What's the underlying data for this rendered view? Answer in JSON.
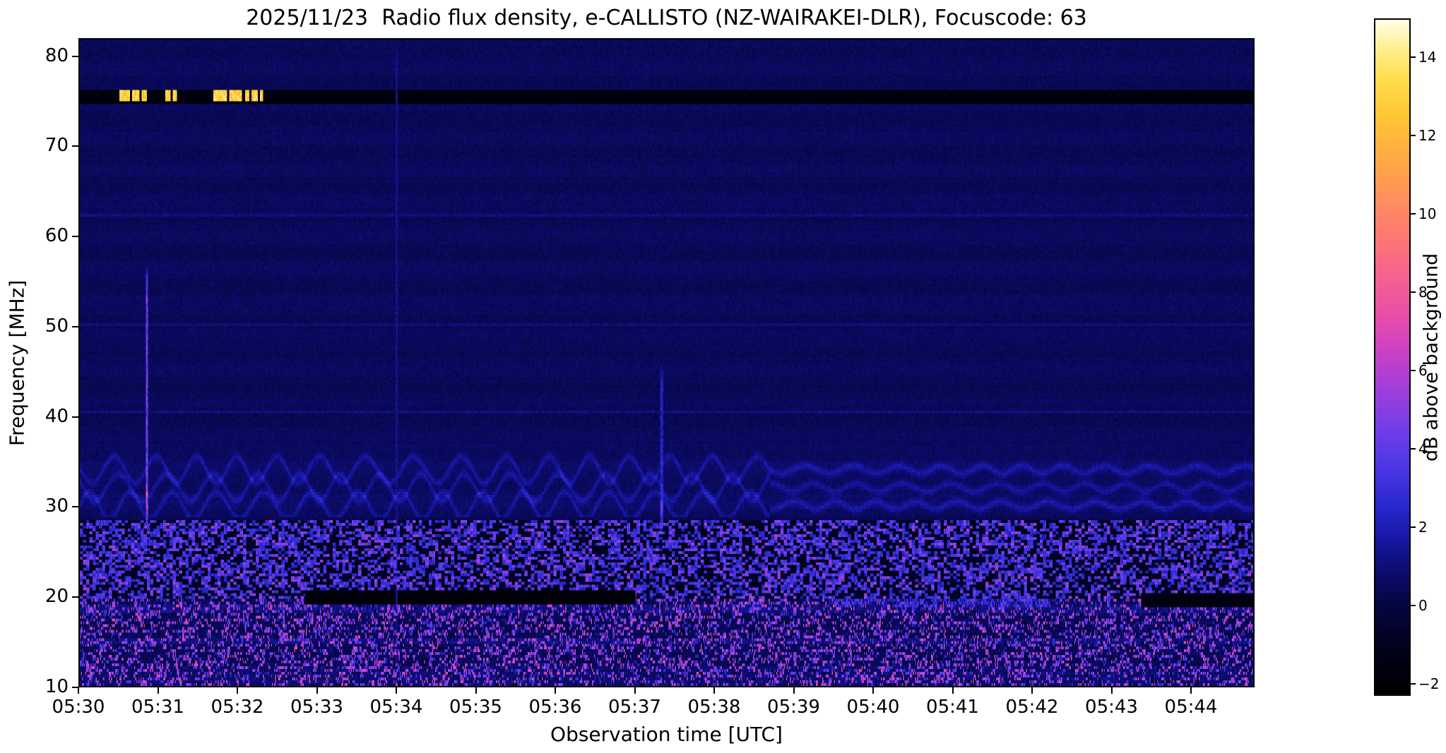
{
  "chart_data": {
    "type": "heatmap",
    "title": "2025/11/23  Radio flux density, e-CALLISTO (NZ-WAIRAKEI-DLR), Focuscode: 63",
    "x_axis": {
      "label": "Observation time [UTC]",
      "start_time": "05:30",
      "total_minutes": 14.8,
      "ticks": [
        {
          "min": 0,
          "label": "05:30"
        },
        {
          "min": 1,
          "label": "05:31"
        },
        {
          "min": 2,
          "label": "05:32"
        },
        {
          "min": 3,
          "label": "05:33"
        },
        {
          "min": 4,
          "label": "05:34"
        },
        {
          "min": 5,
          "label": "05:35"
        },
        {
          "min": 6,
          "label": "05:36"
        },
        {
          "min": 7,
          "label": "05:37"
        },
        {
          "min": 8,
          "label": "05:38"
        },
        {
          "min": 9,
          "label": "05:39"
        },
        {
          "min": 10,
          "label": "05:40"
        },
        {
          "min": 11,
          "label": "05:41"
        },
        {
          "min": 12,
          "label": "05:42"
        },
        {
          "min": 13,
          "label": "05:43"
        },
        {
          "min": 14,
          "label": "05:44"
        }
      ]
    },
    "y_axis": {
      "label": "Frequency [MHz]",
      "range": [
        10,
        82
      ],
      "ticks": [
        10,
        20,
        30,
        40,
        50,
        60,
        70,
        80
      ]
    },
    "colorbar": {
      "label": "dB above background",
      "range": [
        -2.3,
        15.0
      ],
      "ticks": [
        {
          "v": -2,
          "label": "−2"
        },
        {
          "v": 0,
          "label": "0"
        },
        {
          "v": 2,
          "label": "2"
        },
        {
          "v": 4,
          "label": "4"
        },
        {
          "v": 6,
          "label": "6"
        },
        {
          "v": 8,
          "label": "8"
        },
        {
          "v": 10,
          "label": "10"
        },
        {
          "v": 12,
          "label": "12"
        },
        {
          "v": 14,
          "label": "14"
        }
      ]
    },
    "colormap_stops": [
      [
        -2.3,
        0,
        0,
        0
      ],
      [
        -1.2,
        2,
        2,
        26
      ],
      [
        0.0,
        6,
        6,
        66
      ],
      [
        0.8,
        12,
        12,
        108
      ],
      [
        1.6,
        22,
        22,
        160
      ],
      [
        2.5,
        40,
        40,
        205
      ],
      [
        3.5,
        75,
        55,
        230
      ],
      [
        4.5,
        115,
        62,
        232
      ],
      [
        5.5,
        160,
        62,
        220
      ],
      [
        6.5,
        205,
        65,
        196
      ],
      [
        7.5,
        235,
        80,
        168
      ],
      [
        8.5,
        248,
        100,
        142
      ],
      [
        9.5,
        253,
        122,
        115
      ],
      [
        10.5,
        255,
        147,
        92
      ],
      [
        11.5,
        255,
        172,
        66
      ],
      [
        12.5,
        255,
        198,
        52
      ],
      [
        13.5,
        255,
        222,
        78
      ],
      [
        14.3,
        255,
        240,
        150
      ],
      [
        15.0,
        255,
        255,
        235
      ]
    ],
    "features": {
      "background": {
        "base_db": 0.45,
        "noise_db": 0.6
      },
      "rfi_band": {
        "freq": [
          74.8,
          76.5
        ],
        "core_freq": [
          75.0,
          76.35
        ],
        "level_db": -1.7,
        "burst_level_db": 13.0,
        "bursts_min": [
          [
            0.5,
            0.63
          ],
          [
            0.66,
            0.76
          ],
          [
            0.78,
            0.85
          ],
          [
            1.08,
            1.14
          ],
          [
            1.17,
            1.22
          ],
          [
            1.68,
            1.86
          ],
          [
            1.89,
            2.05
          ],
          [
            2.08,
            2.14
          ],
          [
            2.17,
            2.25
          ],
          [
            2.28,
            2.32
          ]
        ]
      },
      "faint_lines_mhz": [
        62.4,
        50.3,
        40.6
      ],
      "wavy_band": {
        "freq": [
          28.8,
          37.0
        ],
        "centers_mhz": [
          30.1,
          32.1,
          34.1
        ],
        "amp_mhz": 1.5,
        "calm_amp_mhz": 0.45,
        "period_min": 0.55,
        "calm_after_min": 8.7,
        "level_db": 1.05
      },
      "speckle_band": {
        "freq": [
          19.6,
          28.5
        ],
        "base_db": -0.9,
        "density": 0.045,
        "max_db": 14
      },
      "hf_band": {
        "freq": [
          10,
          19.6
        ],
        "bright_lines_mhz": [
          18.6,
          15.1
        ],
        "speckle_density": 0.012
      },
      "pink_streaks": {
        "t_min": [
          9.45,
          12.25
        ],
        "freq": [
          18.8,
          20.5
        ],
        "density": 0.22,
        "db": [
          2.5,
          6.5
        ]
      },
      "dark_segments": [
        {
          "t_min": [
            2.84,
            7.01
          ],
          "freq": [
            19.2,
            20.6
          ],
          "level_db": -1.9
        },
        {
          "t_min": [
            13.39,
            14.8
          ],
          "freq": [
            18.9,
            20.3
          ],
          "level_db": -1.6
        }
      ],
      "vertical_lines": [
        {
          "t_min": 0.85,
          "freq": [
            28.0,
            56.5
          ],
          "peak_db": 5.5,
          "bright_at_mhz": 29.5,
          "bright_boost_db": 4.5,
          "note": "magenta streak"
        },
        {
          "t_min": 4.0,
          "freq": [
            10,
            82
          ],
          "peak_db": 1.7,
          "note": "faint blue line"
        },
        {
          "t_min": 7.34,
          "freq": [
            27.5,
            46.0
          ],
          "peak_db": 2.8,
          "bright_at_mhz": 28.3,
          "bright_boost_db": 3.0,
          "note": "blue line"
        }
      ]
    }
  }
}
